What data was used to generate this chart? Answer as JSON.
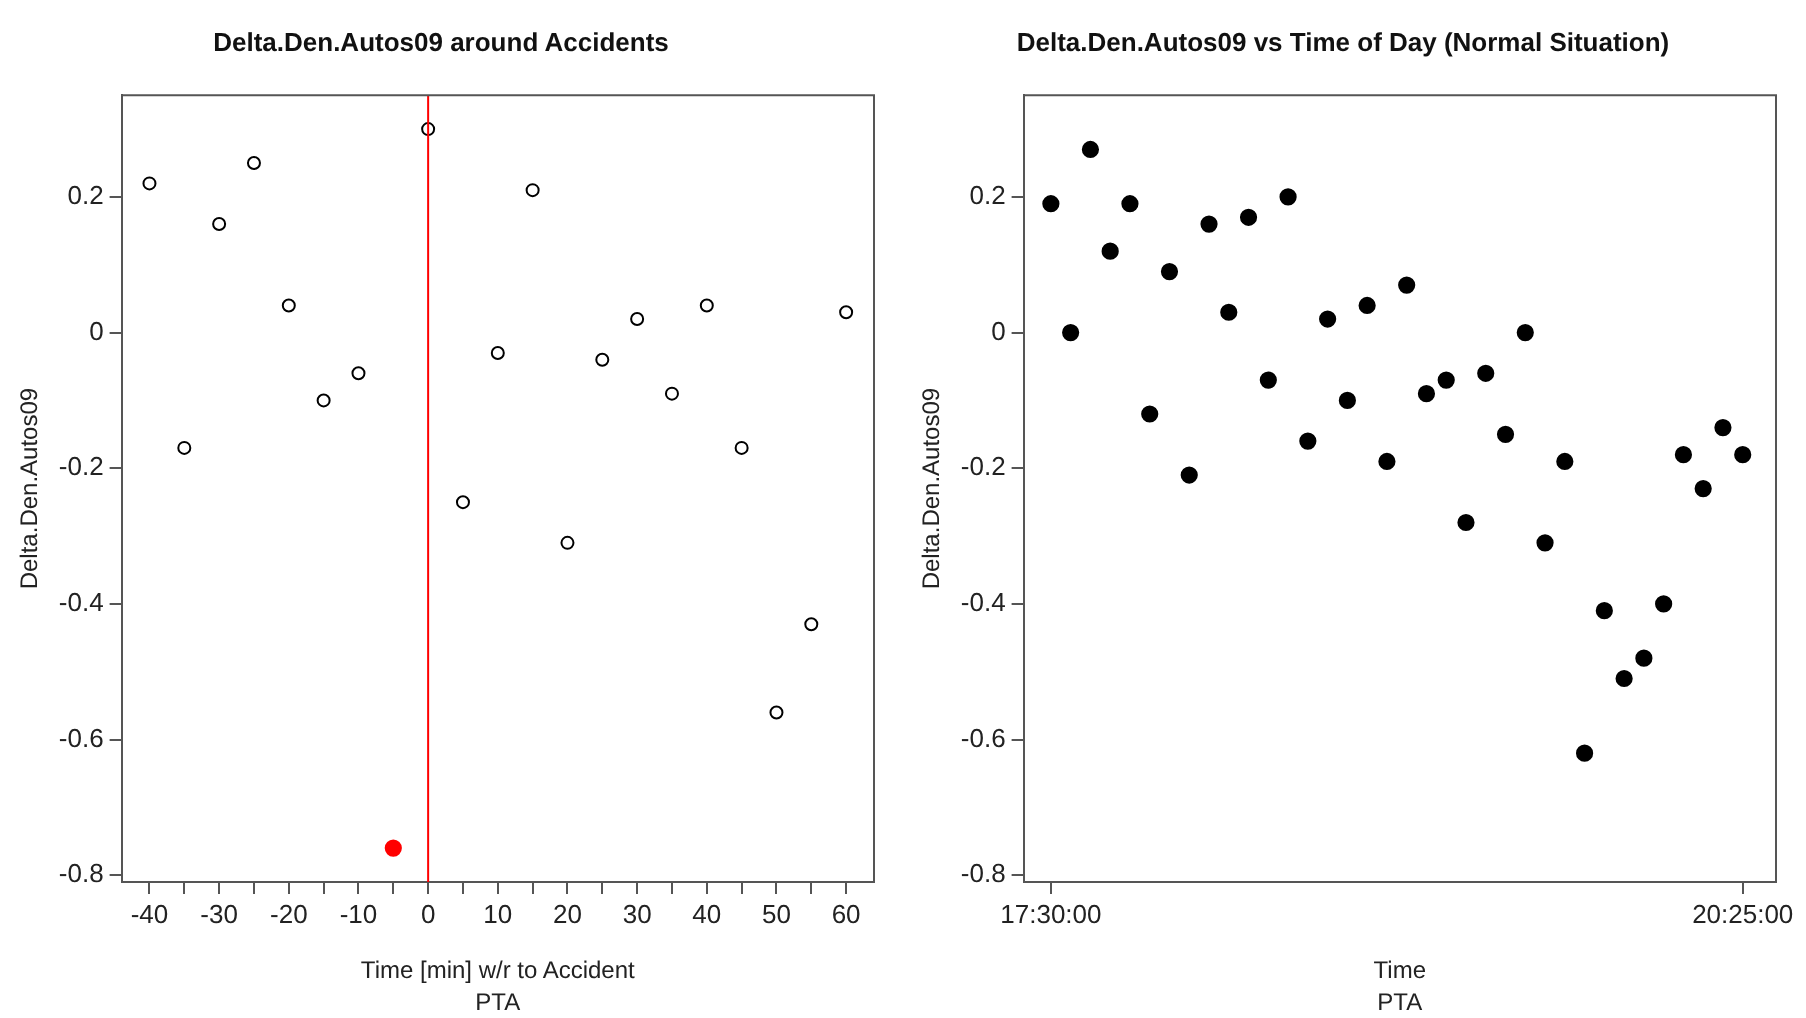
{
  "chart_data": [
    {
      "type": "scatter",
      "title": "Delta.Den.Autos09 around Accidents",
      "xlabel": "Time [min] w/r to Accident",
      "ylabel": "Delta.Den.Autos09",
      "annotations": [
        "PTA"
      ],
      "series": [
        {
          "color": "#000000",
          "x": [
            -40,
            -35,
            -30,
            -25,
            -20,
            -15,
            -10,
            0,
            5,
            10,
            15,
            20,
            25,
            30,
            35,
            40,
            45,
            50,
            55,
            60
          ],
          "values": [
            0.22,
            -0.17,
            0.16,
            0.25,
            0.04,
            -0.1,
            -0.06,
            0.3,
            -0.25,
            -0.03,
            0.21,
            -0.31,
            -0.04,
            0.02,
            -0.09,
            0.04,
            -0.17,
            -0.56,
            -0.43,
            0.03
          ]
        },
        {
          "color": "#ff0000",
          "x": [
            -5
          ],
          "values": [
            -0.76
          ]
        }
      ],
      "xlim": [
        -44,
        64
      ],
      "xticks": [
        -40,
        {
          "value": -35,
          "label": null
        },
        -30,
        {
          "value": -25,
          "label": null
        },
        -20,
        {
          "value": -15,
          "label": null
        },
        -10,
        {
          "value": -5,
          "label": null
        },
        0,
        {
          "value": 5,
          "label": null
        },
        10,
        {
          "value": 15,
          "label": null
        },
        20,
        {
          "value": 25,
          "label": null
        },
        30,
        {
          "value": 35,
          "label": null
        },
        40,
        {
          "value": 45,
          "label": null
        },
        50,
        {
          "value": 55,
          "label": null
        },
        60
      ],
      "ylim": [
        -0.81,
        0.35
      ],
      "yticks": [
        -0.8,
        -0.6,
        -0.4,
        -0.2,
        0.0,
        0.2
      ],
      "ref_lines": [
        {
          "axis": "x",
          "value": 0,
          "color": "#ff0000"
        }
      ],
      "marker": "circle",
      "legend": false,
      "grid": false
    },
    {
      "type": "scatter",
      "title": "Delta.Den.Autos09 vs Time of Day (Normal Situation)",
      "xlabel": "Time",
      "ylabel": "Delta.Den.Autos09",
      "annotations": [
        "PTA"
      ],
      "series": [
        {
          "color": "#000000",
          "x": [
            17.5,
            17.5833,
            17.6667,
            17.75,
            17.8333,
            17.9167,
            18,
            18.0833,
            18.1667,
            18.25,
            18.3333,
            18.4167,
            18.5,
            18.5833,
            18.6667,
            18.75,
            18.8333,
            18.9167,
            19,
            19.0833,
            19.1667,
            19.25,
            19.3333,
            19.4167,
            19.5,
            19.5833,
            19.6667,
            19.75,
            19.8333,
            19.9167,
            20,
            20.0833,
            20.1667,
            20.25,
            20.3333,
            20.4167
          ],
          "values": [
            0.19,
            0.0,
            0.27,
            0.12,
            0.19,
            -0.12,
            0.09,
            -0.21,
            0.16,
            0.03,
            0.17,
            -0.07,
            0.2,
            -0.16,
            0.02,
            -0.1,
            0.04,
            -0.19,
            0.07,
            -0.09,
            -0.07,
            -0.28,
            -0.06,
            -0.15,
            0.0,
            -0.31,
            -0.19,
            -0.62,
            -0.41,
            -0.51,
            -0.48,
            -0.4,
            -0.18,
            -0.23,
            -0.14,
            -0.18
          ]
        }
      ],
      "xlim": [
        17.385,
        20.557
      ],
      "xticks": [
        {
          "value": 17.5,
          "label": "17:30:00"
        },
        {
          "value": 20.4167,
          "label": "20:25:00"
        }
      ],
      "ylim": [
        -0.81,
        0.35
      ],
      "yticks": [
        -0.8,
        -0.6,
        -0.4,
        -0.2,
        0.0,
        0.2
      ],
      "marker": "circle",
      "legend": false,
      "grid": false
    }
  ]
}
